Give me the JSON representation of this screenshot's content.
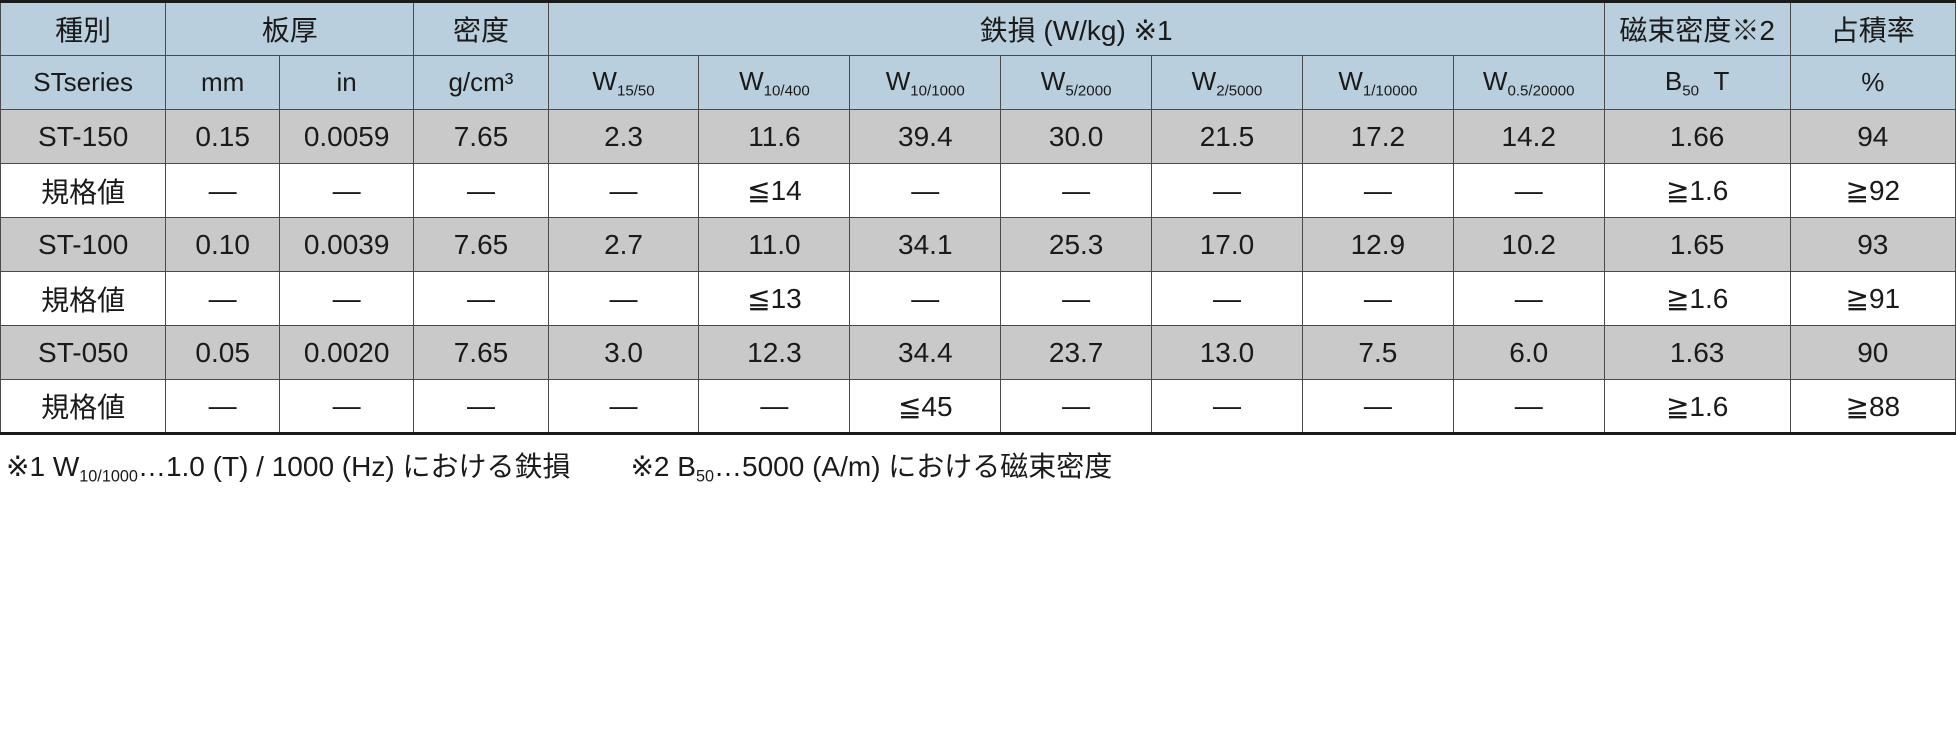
{
  "colors": {
    "header_bg": "#b9cfdd",
    "row_shaded_bg": "#c9c9c9",
    "row_plain_bg": "#ffffff",
    "border": "#4a4a4a",
    "frame": "#1a1a1a",
    "text": "#1a1a1a"
  },
  "typography": {
    "header_fontsize_pt": 21,
    "body_fontsize_pt": 21,
    "footnote_fontsize_pt": 21
  },
  "table": {
    "type": "table",
    "header_row1": {
      "type_label": "種別",
      "thickness_label": "板厚",
      "density_label": "密度",
      "ironloss_label": "鉄損 (W/kg) ※1",
      "flux_label": "磁束密度※2",
      "fill_label": "占積率"
    },
    "header_row2": {
      "type_sub": "STseries",
      "thickness_mm": "mm",
      "thickness_in": "in",
      "density_unit": "g/cm³",
      "w_labels": [
        "W15/50",
        "W10/400",
        "W10/1000",
        "W5/2000",
        "W2/5000",
        "W1/10000",
        "W0.5/20000"
      ],
      "flux_sub": "B50  T",
      "fill_sub": "%"
    },
    "rows": [
      {
        "shaded": true,
        "cells": [
          "ST-150",
          "0.15",
          "0.0059",
          "7.65",
          "2.3",
          "11.6",
          "39.4",
          "30.0",
          "21.5",
          "17.2",
          "14.2",
          "1.66",
          "94"
        ]
      },
      {
        "shaded": false,
        "cells": [
          "規格値",
          "—",
          "—",
          "—",
          "—",
          "≦14",
          "—",
          "—",
          "—",
          "—",
          "—",
          "≧1.6",
          "≧92"
        ]
      },
      {
        "shaded": true,
        "cells": [
          "ST-100",
          "0.10",
          "0.0039",
          "7.65",
          "2.7",
          "11.0",
          "34.1",
          "25.3",
          "17.0",
          "12.9",
          "10.2",
          "1.65",
          "93"
        ]
      },
      {
        "shaded": false,
        "cells": [
          "規格値",
          "—",
          "—",
          "—",
          "—",
          "≦13",
          "—",
          "—",
          "—",
          "—",
          "—",
          "≧1.6",
          "≧91"
        ]
      },
      {
        "shaded": true,
        "cells": [
          "ST-050",
          "0.05",
          "0.0020",
          "7.65",
          "3.0",
          "12.3",
          "34.4",
          "23.7",
          "13.0",
          "7.5",
          "6.0",
          "1.63",
          "90"
        ]
      },
      {
        "shaded": false,
        "cells": [
          "規格値",
          "—",
          "—",
          "—",
          "—",
          "—",
          "≦45",
          "—",
          "—",
          "—",
          "—",
          "≧1.6",
          "≧88"
        ]
      }
    ]
  },
  "footnotes": {
    "note1_prefix": "※1 W",
    "note1_sub": "10/1000",
    "note1_rest": "…1.0 (T) / 1000 (Hz) における鉄損",
    "note2_prefix": "※2 B",
    "note2_sub": "50",
    "note2_rest": "…5000 (A/m) における磁束密度"
  }
}
